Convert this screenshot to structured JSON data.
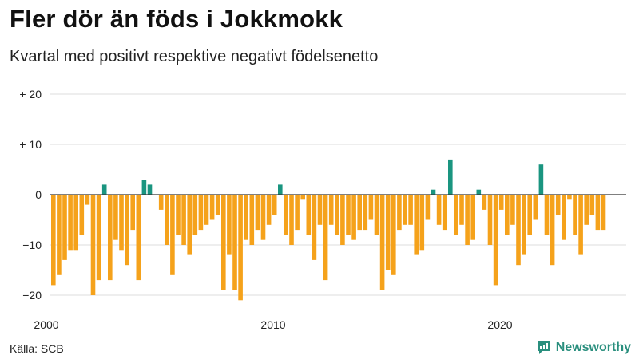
{
  "header": {
    "title": "Fler dör än föds i Jokkmokk",
    "subtitle": "Kvartal med positivt respektive negativt födelsenetto"
  },
  "footer": {
    "source": "Källa: SCB",
    "brand": "Newsworthy",
    "brand_icon": "newsworthy-logo-icon"
  },
  "colors": {
    "positive": "#1a9580",
    "negative": "#f5a21b",
    "grid": "#dddddd",
    "zero": "#333333",
    "brand": "#2a8f7e"
  },
  "chart_data": {
    "type": "bar",
    "title": "Fler dör än föds i Jokkmokk",
    "subtitle": "Kvartal med positivt respektive negativt födelsenetto",
    "x_start": "2000 Q1",
    "x_ticks": [
      {
        "label": "2000",
        "value": 2000
      },
      {
        "label": "2010",
        "value": 2010
      },
      {
        "label": "2020",
        "value": 2020
      }
    ],
    "y_ticks": [
      {
        "label": "+ 20",
        "value": 20
      },
      {
        "label": "+ 10",
        "value": 10
      },
      {
        "label": "0",
        "value": 0
      },
      {
        "label": "−10",
        "value": -10
      },
      {
        "label": "−20",
        "value": -20
      }
    ],
    "ylim": [
      -22,
      20
    ],
    "grid": true,
    "values": [
      -18,
      -16,
      -13,
      -11,
      -11,
      -8,
      -2,
      -20,
      -17,
      2,
      -17,
      -9,
      -11,
      -14,
      -7,
      -17,
      3,
      2,
      0,
      -3,
      -10,
      -16,
      -8,
      -10,
      -12,
      -8,
      -7,
      -6,
      -5,
      -4,
      -19,
      -12,
      -19,
      -21,
      -9,
      -10,
      -7,
      -9,
      -6,
      -4,
      2,
      -8,
      -10,
      -7,
      -1,
      -8,
      -13,
      -6,
      -17,
      -6,
      -8,
      -10,
      -8,
      -9,
      -7,
      -7,
      -5,
      -8,
      -19,
      -15,
      -16,
      -7,
      -6,
      -6,
      -12,
      -11,
      -5,
      1,
      -6,
      -7,
      7,
      -8,
      -6,
      -10,
      -9,
      1,
      -3,
      -10,
      -18,
      -3,
      -8,
      -6,
      -14,
      -12,
      -8,
      -5,
      6,
      -8,
      -14,
      -4,
      -9,
      -1,
      -8,
      -12,
      -6,
      -4,
      -7,
      -7
    ]
  }
}
